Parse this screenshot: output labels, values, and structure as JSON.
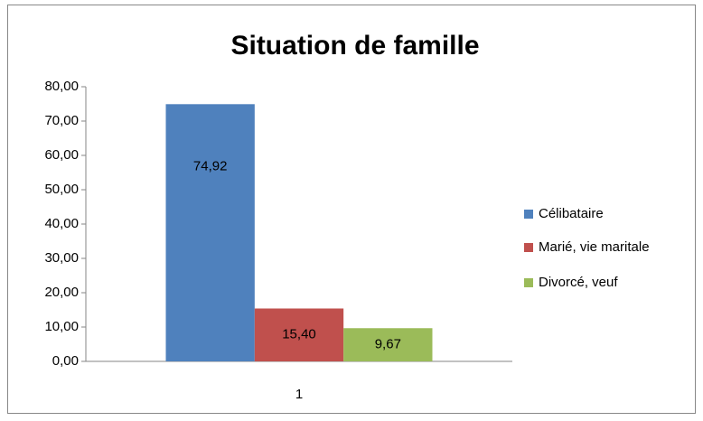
{
  "chart_data": {
    "type": "bar",
    "title": "Situation de famille",
    "categories": [
      "1"
    ],
    "series": [
      {
        "name": "Célibataire",
        "color": "#4f81bd",
        "values": [
          74.92
        ],
        "value_labels": [
          "74,92"
        ]
      },
      {
        "name": "Marié, vie maritale",
        "color": "#c0504d",
        "values": [
          15.4
        ],
        "value_labels": [
          "15,40"
        ]
      },
      {
        "name": "Divorcé, veuf",
        "color": "#9bbb59",
        "values": [
          9.67
        ],
        "value_labels": [
          "9,67"
        ]
      }
    ],
    "ylim": [
      0,
      80
    ],
    "yticks": [
      {
        "value": 0,
        "label": "0,00"
      },
      {
        "value": 10,
        "label": "10,00"
      },
      {
        "value": 20,
        "label": "20,00"
      },
      {
        "value": 30,
        "label": "30,00"
      },
      {
        "value": 40,
        "label": "40,00"
      },
      {
        "value": 50,
        "label": "50,00"
      },
      {
        "value": 60,
        "label": "60,00"
      },
      {
        "value": 70,
        "label": "70,00"
      },
      {
        "value": 80,
        "label": "80,00"
      }
    ],
    "grid": false,
    "legend": "right"
  }
}
